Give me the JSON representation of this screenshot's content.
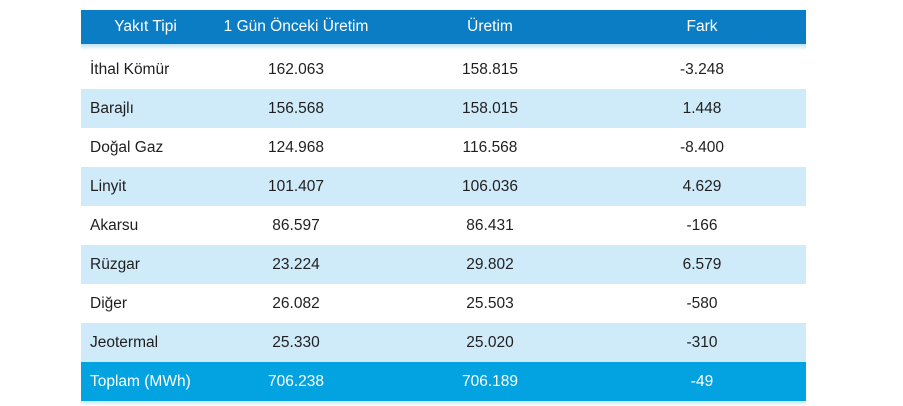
{
  "colors": {
    "header_bg": "#0b7dc5",
    "footer_bg": "#02a3e0",
    "stripe_bg": "#cfeaf8",
    "header_sep": "#bfe2f4",
    "footer_sep": "#c5e8f7",
    "header_text": "#ffffff",
    "text": "#1f1f1f"
  },
  "table": {
    "headers": {
      "fuel": "Yakıt Tipi",
      "prev": "1 Gün Önceki Üretim",
      "current": "Üretim",
      "diff": "Fark"
    },
    "rows": [
      {
        "fuel": "İthal Kömür",
        "prev": "162.063",
        "current": "158.815",
        "diff": "-3.248"
      },
      {
        "fuel": "Barajlı",
        "prev": "156.568",
        "current": "158.015",
        "diff": "1.448"
      },
      {
        "fuel": "Doğal Gaz",
        "prev": "124.968",
        "current": "116.568",
        "diff": "-8.400"
      },
      {
        "fuel": "Linyit",
        "prev": "101.407",
        "current": "106.036",
        "diff": "4.629"
      },
      {
        "fuel": "Akarsu",
        "prev": "86.597",
        "current": "86.431",
        "diff": "-166"
      },
      {
        "fuel": "Rüzgar",
        "prev": "23.224",
        "current": "29.802",
        "diff": "6.579"
      },
      {
        "fuel": "Diğer",
        "prev": "26.082",
        "current": "25.503",
        "diff": "-580"
      },
      {
        "fuel": "Jeotermal",
        "prev": "25.330",
        "current": "25.020",
        "diff": "-310"
      }
    ],
    "footer": {
      "fuel": "Toplam (MWh)",
      "prev": "706.238",
      "current": "706.189",
      "diff": "-49"
    }
  },
  "chart_data": {
    "type": "table",
    "columns": [
      "Yakıt Tipi",
      "1 Gün Önceki Üretim",
      "Üretim",
      "Fark"
    ],
    "rows": [
      [
        "İthal Kömür",
        162063,
        158815,
        -3248
      ],
      [
        "Barajlı",
        156568,
        158015,
        1448
      ],
      [
        "Doğal Gaz",
        124968,
        116568,
        -8400
      ],
      [
        "Linyit",
        101407,
        106036,
        4629
      ],
      [
        "Akarsu",
        86597,
        86431,
        -166
      ],
      [
        "Rüzgar",
        23224,
        29802,
        6579
      ],
      [
        "Diğer",
        26082,
        25503,
        -580
      ],
      [
        "Jeotermal",
        25330,
        25020,
        -310
      ]
    ],
    "totals_row": [
      "Toplam (MWh)",
      706238,
      706189,
      -49
    ],
    "unit": "MWh"
  }
}
